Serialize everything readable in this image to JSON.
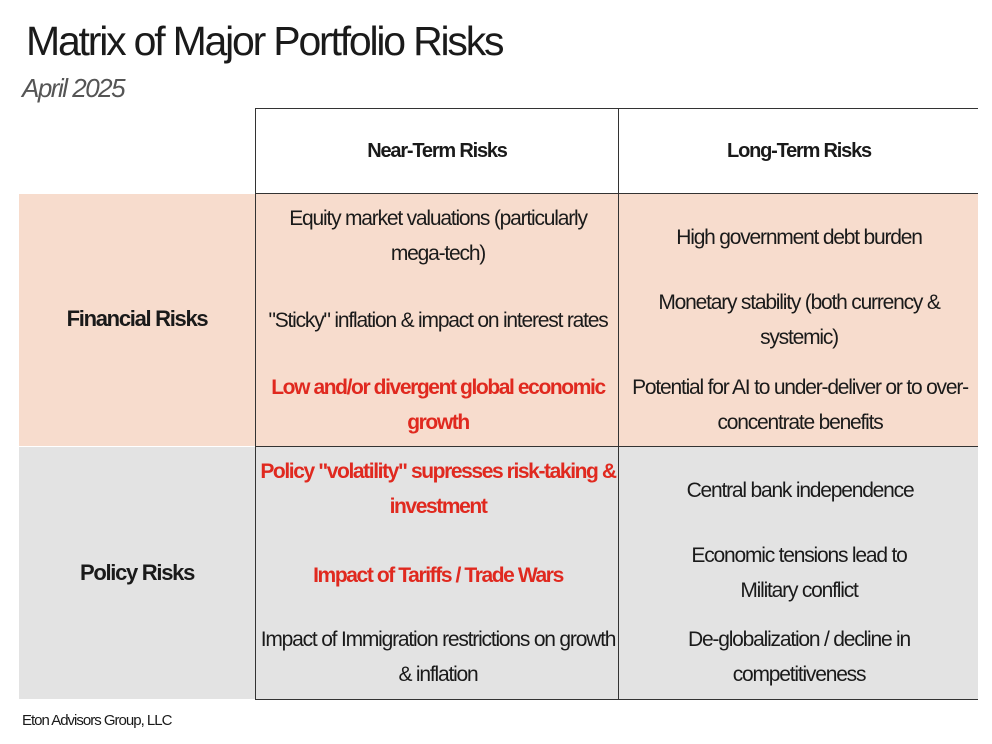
{
  "title": "Matrix of Major Portfolio Risks",
  "subtitle": "April 2025",
  "columns": {
    "near_term": "Near-Term Risks",
    "long_term": "Long-Term Risks"
  },
  "rows": {
    "financial": {
      "label": "Financial Risks",
      "near_term": [
        "Equity market valuations (particularly mega-tech)",
        "\"Sticky\" inflation & impact on interest rates",
        "Low and/or divergent global economic growth"
      ],
      "long_term": [
        "High government debt burden",
        "Monetary stability (both currency & systemic)",
        "Potential for AI to under-deliver or to over-concentrate benefits"
      ]
    },
    "policy": {
      "label": "Policy Risks",
      "near_term": [
        "Policy \"volatility\" supresses risk-taking & investment",
        "Impact of Tariffs / Trade Wars",
        "Impact of Immigration restrictions on growth & inflation"
      ],
      "long_term": [
        "Central bank independence",
        "Economic tensions lead to Military conflict",
        "De-globalization / decline in competitiveness"
      ]
    }
  },
  "highlight_color": "#e0291f",
  "footer": "Eton Advisors Group, LLC"
}
